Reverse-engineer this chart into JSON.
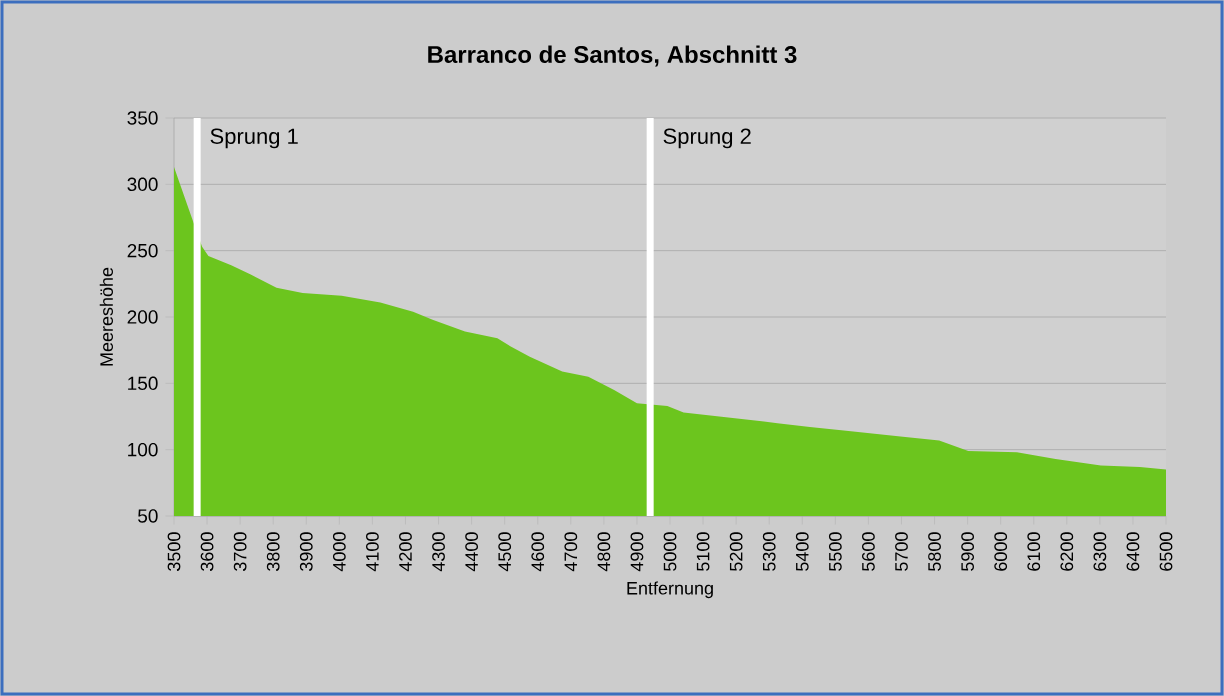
{
  "chart_data": {
    "type": "area",
    "title": "Barranco de Santos, Abschnitt 3",
    "xlabel": "Entfernung",
    "ylabel": "Meereshöhe",
    "color": "#6cc51e",
    "grid": "y",
    "x": [
      3500,
      3545,
      3585,
      3604,
      3673,
      3732,
      3810,
      3889,
      4007,
      4124,
      4223,
      4282,
      4380,
      4478,
      4517,
      4576,
      4674,
      4753,
      4831,
      4900,
      4992,
      5041,
      5149,
      5325,
      5423,
      5540,
      5697,
      5814,
      5902,
      6049,
      6166,
      6303,
      6421,
      6500
    ],
    "values": [
      313,
      281,
      253,
      246,
      239,
      232,
      222,
      218,
      216,
      211,
      204,
      198,
      189,
      184,
      178,
      170,
      159,
      155,
      145,
      135,
      133,
      128,
      125,
      120,
      117,
      114,
      110,
      107,
      99,
      98,
      93,
      88,
      87,
      85
    ],
    "xlim": [
      3500,
      6500
    ],
    "ylim": [
      50,
      350
    ],
    "xticks": [
      3500,
      3600,
      3700,
      3800,
      3900,
      4000,
      4100,
      4200,
      4300,
      4400,
      4500,
      4600,
      4700,
      4800,
      4900,
      5000,
      5100,
      5200,
      5300,
      5400,
      5500,
      5600,
      5700,
      5800,
      5900,
      6000,
      6100,
      6200,
      6300,
      6400,
      6500
    ],
    "yticks": [
      50,
      100,
      150,
      200,
      250,
      300,
      350
    ],
    "ref_lines": [
      {
        "axis": "x",
        "value": 3570,
        "label": "Sprung 1",
        "color": "#ffffff"
      },
      {
        "axis": "x",
        "value": 4940,
        "label": "Sprung 2",
        "color": "#ffffff"
      }
    ]
  }
}
